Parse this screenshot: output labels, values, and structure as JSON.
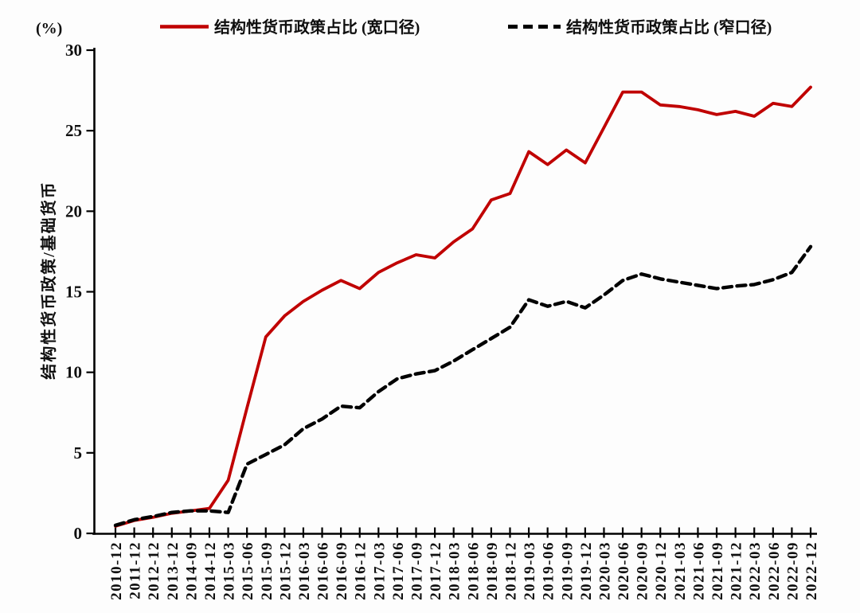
{
  "page": {
    "background": "#fdfdfd"
  },
  "chart_data": {
    "type": "line",
    "title": "",
    "unit_label": "(%)",
    "ylabel": "结构性货币政策/基础货币",
    "xlabel": "",
    "ylim": [
      0,
      30
    ],
    "yticks": [
      0,
      5,
      10,
      15,
      20,
      25,
      30
    ],
    "grid": false,
    "legend_position": "top",
    "tick_label_rotation": -90,
    "categories": [
      "2010-12",
      "2011-12",
      "2012-12",
      "2013-12",
      "2014-09",
      "2014-12",
      "2015-03",
      "2015-06",
      "2015-09",
      "2015-12",
      "2016-03",
      "2016-06",
      "2016-09",
      "2016-12",
      "2017-03",
      "2017-06",
      "2017-09",
      "2017-12",
      "2018-03",
      "2018-06",
      "2018-09",
      "2018-12",
      "2019-03",
      "2019-06",
      "2019-09",
      "2019-12",
      "2020-03",
      "2020-06",
      "2020-09",
      "2020-12",
      "2021-03",
      "2021-06",
      "2021-09",
      "2021-12",
      "2022-03",
      "2022-06",
      "2022-09",
      "2022-12"
    ],
    "series": [
      {
        "name": "结构性货币政策占比 (宽口径)",
        "color": "#c00000",
        "line_style": "solid",
        "values": [
          0.45,
          0.8,
          1.0,
          1.25,
          1.4,
          1.55,
          3.3,
          7.8,
          12.2,
          13.5,
          14.4,
          15.1,
          15.7,
          15.2,
          16.2,
          16.8,
          17.3,
          17.1,
          18.1,
          18.9,
          20.7,
          21.1,
          23.7,
          22.9,
          23.8,
          23.0,
          25.2,
          27.4,
          27.4,
          26.6,
          26.5,
          26.3,
          26.0,
          26.2,
          25.9,
          26.7,
          26.5,
          27.7
        ]
      },
      {
        "name": "结构性货币政策占比 (窄口径)",
        "color": "#000000",
        "line_style": "dashed",
        "values": [
          0.5,
          0.85,
          1.05,
          1.3,
          1.4,
          1.4,
          1.3,
          4.3,
          4.9,
          5.5,
          6.5,
          7.1,
          7.9,
          7.8,
          8.8,
          9.6,
          9.9,
          10.1,
          10.7,
          11.4,
          12.1,
          12.8,
          14.5,
          14.1,
          14.4,
          14.0,
          14.8,
          15.7,
          16.1,
          15.8,
          15.6,
          15.4,
          15.2,
          15.35,
          15.45,
          15.75,
          16.2,
          17.8
        ]
      }
    ]
  }
}
